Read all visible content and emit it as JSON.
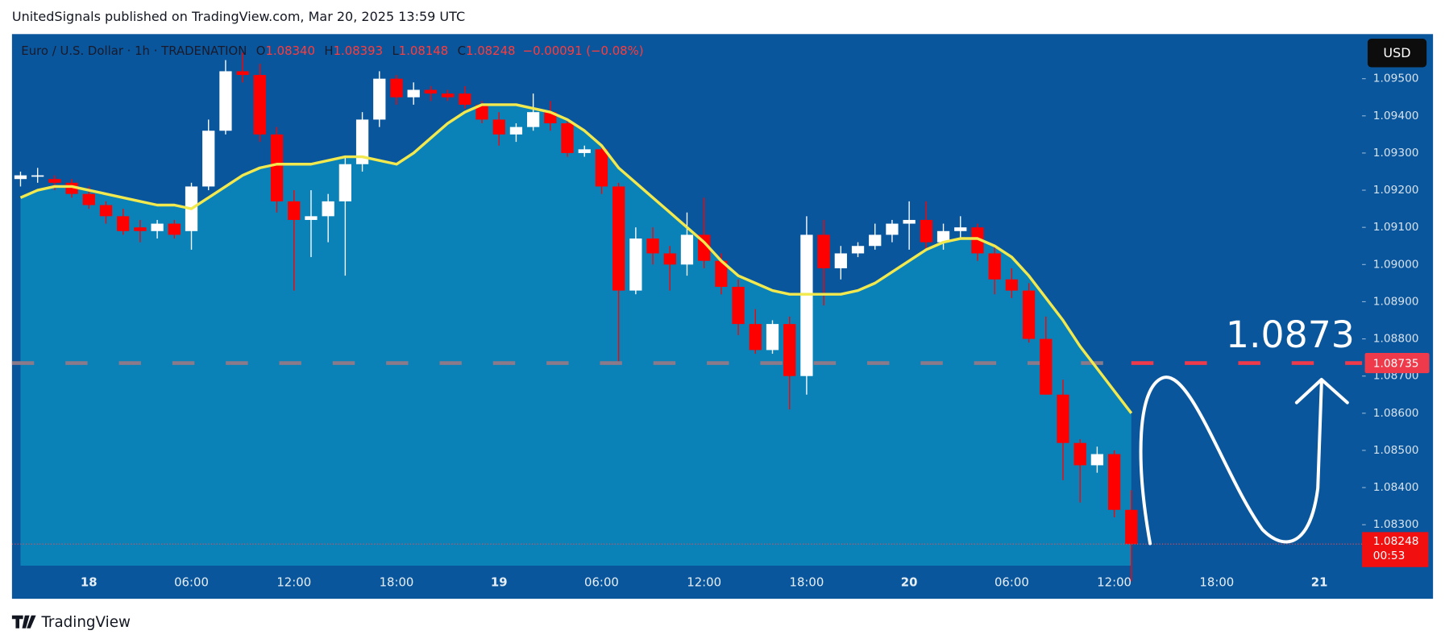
{
  "header": "UnitedSignals published on TradingView.com, Mar 20, 2025 13:59 UTC",
  "footer": "TradingView",
  "currency": "USD",
  "legend": {
    "symbol": "Euro / U.S. Dollar · 1h · TRADENATION",
    "o_label": "O",
    "open": "1.08340",
    "h_label": "H",
    "high": "1.08393",
    "l_label": "L",
    "low": "1.08148",
    "c_label": "C",
    "close": "1.08248",
    "change": "−0.00091 (−0.08%)"
  },
  "chart_data": {
    "type": "candlestick",
    "categories": [
      null,
      null,
      null,
      null,
      "18",
      null,
      null,
      null,
      null,
      null,
      "06:00",
      null,
      null,
      null,
      null,
      null,
      "12:00",
      null,
      null,
      null,
      null,
      null,
      "18:00",
      null,
      null,
      null,
      null,
      null,
      "19",
      null,
      null,
      null,
      null,
      null,
      "06:00",
      null,
      null,
      null,
      null,
      null,
      "12:00",
      null,
      null,
      null,
      null,
      null,
      "18:00",
      null,
      null,
      null,
      null,
      null,
      "20",
      null,
      null,
      null,
      null,
      null,
      "06:00",
      null,
      null,
      null,
      null,
      null,
      "12:00",
      null,
      null,
      null,
      null,
      null,
      "18:00",
      null,
      null,
      null,
      null,
      null,
      "21",
      null,
      null
    ],
    "open": [
      1.0923,
      1.0924,
      1.0923,
      1.0922,
      1.0919,
      1.0916,
      1.0913,
      1.091,
      1.0909,
      1.0911,
      1.0909,
      1.0921,
      1.0936,
      1.0952,
      1.0951,
      1.0935,
      1.0917,
      1.0912,
      1.0913,
      1.0917,
      1.0927,
      1.0939,
      1.095,
      1.0945,
      1.0947,
      1.0946,
      1.0946,
      1.0943,
      1.0939,
      1.0935,
      1.0937,
      1.0941,
      1.0938,
      1.093,
      1.0931,
      1.0921,
      1.0893,
      1.0907,
      1.0903,
      1.09,
      1.0908,
      1.0901,
      1.0894,
      1.0884,
      1.0877,
      1.0884,
      1.087,
      1.0908,
      1.0899,
      1.0903,
      1.0905,
      1.0908,
      1.0911,
      1.0912,
      1.0906,
      1.0909,
      1.091,
      1.0903,
      1.0896,
      1.0893,
      1.088,
      1.0865,
      1.0852,
      1.0846,
      1.0849,
      1.0834,
      null,
      null,
      null,
      null,
      null,
      null,
      null,
      null,
      null,
      null,
      null,
      null,
      null
    ],
    "high": [
      1.0925,
      1.0926,
      1.0924,
      1.0923,
      1.0921,
      1.0917,
      1.0915,
      1.0912,
      1.0912,
      1.0912,
      1.0922,
      1.0939,
      1.0955,
      1.0957,
      1.0954,
      1.0937,
      1.092,
      1.092,
      1.0919,
      1.0929,
      1.0941,
      1.0952,
      1.0951,
      1.0949,
      1.0948,
      1.0947,
      1.0948,
      1.0944,
      1.0941,
      1.0938,
      1.0946,
      1.0944,
      1.0939,
      1.0932,
      1.0932,
      1.0922,
      1.091,
      1.091,
      1.0905,
      1.0914,
      1.0918,
      1.0903,
      1.0896,
      1.0888,
      1.0885,
      1.0886,
      1.0913,
      1.0912,
      1.0905,
      1.0906,
      1.0911,
      1.0912,
      1.0917,
      1.0917,
      1.0911,
      1.0913,
      1.0911,
      1.0905,
      1.0899,
      1.0895,
      1.0886,
      1.0869,
      1.0853,
      1.0851,
      1.085,
      1.08393,
      null,
      null,
      null,
      null,
      null,
      null,
      null,
      null,
      null,
      null,
      null,
      null,
      null
    ],
    "low": [
      1.0921,
      1.0922,
      1.092,
      1.0918,
      1.0915,
      1.0911,
      1.0908,
      1.0906,
      1.0907,
      1.0907,
      1.0904,
      1.092,
      1.0935,
      1.0949,
      1.0933,
      1.0914,
      1.0893,
      1.0902,
      1.0906,
      1.0897,
      1.0925,
      1.0937,
      1.0943,
      1.0943,
      1.0944,
      1.0944,
      1.0942,
      1.0938,
      1.0932,
      1.0933,
      1.0936,
      1.0936,
      1.0929,
      1.0929,
      1.0919,
      1.0874,
      1.0892,
      1.09,
      1.0893,
      1.0897,
      1.0899,
      1.0892,
      1.0881,
      1.0876,
      1.0876,
      1.0861,
      1.0865,
      1.0889,
      1.0896,
      1.0902,
      1.0904,
      1.0906,
      1.0904,
      1.0904,
      1.0904,
      1.0907,
      1.0901,
      1.0892,
      1.0891,
      1.0879,
      1.0865,
      1.0842,
      1.0836,
      1.0844,
      1.0832,
      1.08148,
      null,
      null,
      null,
      null,
      null,
      null,
      null,
      null,
      null,
      null,
      null,
      null,
      null
    ],
    "close": [
      1.0924,
      1.0924,
      1.0922,
      1.0919,
      1.0916,
      1.0913,
      1.0909,
      1.0909,
      1.0911,
      1.0908,
      1.0921,
      1.0936,
      1.0952,
      1.0951,
      1.0935,
      1.0917,
      1.0912,
      1.0913,
      1.0917,
      1.0927,
      1.0939,
      1.095,
      1.0945,
      1.0947,
      1.0946,
      1.0945,
      1.0943,
      1.0939,
      1.0935,
      1.0937,
      1.0941,
      1.0938,
      1.093,
      1.0931,
      1.0921,
      1.0893,
      1.0907,
      1.0903,
      1.09,
      1.0908,
      1.0901,
      1.0894,
      1.0884,
      1.0877,
      1.0884,
      1.087,
      1.0908,
      1.0899,
      1.0903,
      1.0905,
      1.0908,
      1.0911,
      1.0912,
      1.0906,
      1.0909,
      1.091,
      1.0903,
      1.0896,
      1.0893,
      1.088,
      1.0865,
      1.0852,
      1.0846,
      1.0849,
      1.0834,
      1.08248,
      null,
      null,
      null,
      null,
      null,
      null,
      null,
      null,
      null,
      null,
      null,
      null,
      null
    ],
    "line": {
      "color": "#f2e94e",
      "values": [
        1.0918,
        1.092,
        1.0921,
        1.0921,
        1.092,
        1.0919,
        1.0918,
        1.0917,
        1.0916,
        1.0916,
        1.0915,
        1.0918,
        1.0921,
        1.0924,
        1.0926,
        1.0927,
        1.0927,
        1.0927,
        1.0928,
        1.0929,
        1.0929,
        1.0928,
        1.0927,
        1.093,
        1.0934,
        1.0938,
        1.0941,
        1.0943,
        1.0943,
        1.0943,
        1.0942,
        1.0941,
        1.0939,
        1.0936,
        1.0932,
        1.0926,
        1.0922,
        1.0918,
        1.0914,
        1.091,
        1.0906,
        1.0901,
        1.0897,
        1.0895,
        1.0893,
        1.0892,
        1.0892,
        1.0892,
        1.0892,
        1.0893,
        1.0895,
        1.0898,
        1.0901,
        1.0904,
        1.0906,
        1.0907,
        1.0907,
        1.0905,
        1.0902,
        1.0897,
        1.0891,
        1.0885,
        1.0878,
        1.0872,
        1.0866,
        1.086,
        null,
        null,
        null,
        null,
        null,
        null,
        null,
        null,
        null,
        null,
        null,
        null,
        null
      ]
    },
    "up_color": "#ffffff",
    "down_color": "#ff0000",
    "ylim": [
      1.0819,
      1.0962
    ],
    "yticks": [
      {
        "value": 1.083,
        "label": "1.08300"
      },
      {
        "value": 1.084,
        "label": "1.08400"
      },
      {
        "value": 1.085,
        "label": "1.08500"
      },
      {
        "value": 1.086,
        "label": "1.08600"
      },
      {
        "value": 1.087,
        "label": "1.08700"
      },
      {
        "value": 1.088,
        "label": "1.08800"
      },
      {
        "value": 1.089,
        "label": "1.08900"
      },
      {
        "value": 1.09,
        "label": "1.09000"
      },
      {
        "value": 1.091,
        "label": "1.09100"
      },
      {
        "value": 1.092,
        "label": "1.09200"
      },
      {
        "value": 1.093,
        "label": "1.09300"
      },
      {
        "value": 1.094,
        "label": "1.09400"
      },
      {
        "value": 1.095,
        "label": "1.09500"
      }
    ],
    "hline": {
      "value": 1.08735,
      "label": "1.08735"
    },
    "annotation": "1.0873",
    "last_price": {
      "value": 1.08248,
      "label": "1.08248",
      "countdown": "00:53"
    }
  }
}
